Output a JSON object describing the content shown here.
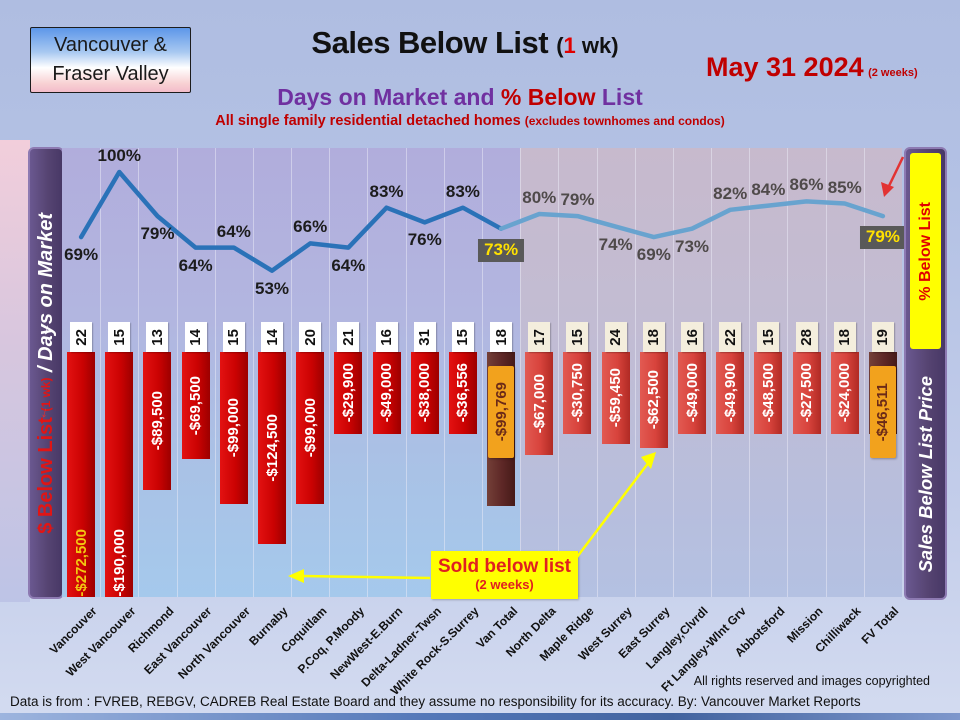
{
  "badge": {
    "line1": "Vancouver &",
    "line2": "Fraser Valley"
  },
  "title": {
    "main": "Sales Below List ",
    "paren_pre": "(",
    "num": "1",
    "paren_post": " wk)"
  },
  "date": {
    "main": "May 31  2024",
    "sub": "(2 weeks)"
  },
  "subtitle": {
    "part1": "Days on Market and ",
    "part2": "% Below",
    "part3": " List"
  },
  "subtitle2": {
    "main": "All single family residential detached homes ",
    "paren": "(excludes townhomes and condos)"
  },
  "left_axis": {
    "red": "$ Below List ",
    "red_small": "(1 wk)",
    "white": " / Days on Market",
    "arrow": "↓"
  },
  "right_axis": {
    "top": "% Below List",
    "bottom": "Sales Below List Price"
  },
  "callout": {
    "line1": "Sold below list",
    "line2": "(2 weeks)"
  },
  "footer": {
    "rights": "All rights reserved and  images copyrighted",
    "source": "Data is from : FVREB, REBGV, CADREB Real Estate Board and they assume no responsibility for its accuracy. By: Vancouver  Market Reports"
  },
  "colors": {
    "bar_red": "linear-gradient(90deg,#e31212 0%,#cb0202 55%,#9c0000 100%)",
    "bar_red_fv": "linear-gradient(90deg,#e25a52 0%,#d8433c 55%,#b02a24 100%)",
    "bar_total": "linear-gradient(90deg,#744038 0%,#5d2726 55%,#451a18 100%)",
    "label_orange": "#f2a21d",
    "line_blue": "#2a72b8",
    "line_blue_fv": "#68a3cf",
    "days_bg_van": "#ffffff",
    "days_bg_fv": "#f4eedd",
    "pct_text_van": "#1c1c1c",
    "pct_text_fv": "#4f4a4a",
    "bar_label_gold": "#f2c811",
    "arrow_yellow": "#ffff00",
    "arrow_red": "#e23333"
  },
  "chart_data": {
    "type": "line+bar",
    "title": "Sales Below List (1 wk) — Days on Market and % Below List",
    "categories": [
      "Vancouver",
      "West Vancouver",
      "Richmond",
      "East Vancouver",
      "North Vancouver",
      "Burnaby",
      "Coquitlam",
      "P.Coq, P.Moody",
      "NewWest-E.Burn",
      "Delta-Ladner-Twsn",
      "White Rock-S.Surrey",
      "Van Total",
      "North Delta",
      "Maple Ridge",
      "West Surrey",
      "East Surrey",
      "Langley,Clvrdl",
      "Ft Langley-Wlnt Grv",
      "Abbotsford",
      "Mission",
      "Chilliwack",
      "FV Total"
    ],
    "series": [
      {
        "name": "% Below List",
        "type": "line",
        "values": [
          69,
          100,
          79,
          64,
          64,
          53,
          66,
          64,
          83,
          76,
          83,
          73,
          80,
          79,
          74,
          69,
          73,
          82,
          84,
          86,
          85,
          79
        ]
      },
      {
        "name": "Days on Market",
        "type": "label-row",
        "values": [
          22,
          15,
          13,
          14,
          15,
          14,
          20,
          21,
          16,
          31,
          15,
          18,
          17,
          15,
          24,
          18,
          16,
          22,
          15,
          28,
          18,
          19
        ]
      },
      {
        "name": "$ Below List",
        "type": "bar",
        "values": [
          -272500,
          -190000,
          -89500,
          -69500,
          -99000,
          -124500,
          -99000,
          -29900,
          -49000,
          -38000,
          -36556,
          -99769,
          -67000,
          -30750,
          -59450,
          -62500,
          -49000,
          -49900,
          -48500,
          -27500,
          -24000,
          -46511
        ]
      }
    ],
    "bar_labels": [
      "-$272,500",
      "-$190,000",
      "-$89,500",
      "-$69,500",
      "-$99,000",
      "-$124,500",
      "-$99,000",
      "-$29,900",
      "-$49,000",
      "-$38,000",
      "-$36,556",
      "-$99,769",
      "-$67,000",
      "-$30,750",
      "-$59,450",
      "-$62,500",
      "-$49,000",
      "-$49,900",
      "-$48,500",
      "-$27,500",
      "-$24,000",
      "-$46,511"
    ],
    "pct_labels": [
      "69%",
      "100%",
      "79%",
      "64%",
      "64%",
      "53%",
      "66%",
      "64%",
      "83%",
      "76%",
      "83%",
      "73%",
      "80%",
      "79%",
      "74%",
      "69%",
      "73%",
      "82%",
      "84%",
      "86%",
      "85%",
      "79%"
    ],
    "pct_label_pos": [
      "below",
      "above",
      "below",
      "below",
      "above",
      "below",
      "above",
      "below",
      "above",
      "below",
      "above",
      "below-box",
      "above",
      "above",
      "below",
      "below",
      "below",
      "above",
      "above",
      "above",
      "above",
      "below-box"
    ],
    "total_indices": [
      11,
      21
    ],
    "section_split_index": 12,
    "legend_position": "sidebars",
    "grid": "vertical-only",
    "pct_axis_range": [
      53,
      100
    ]
  }
}
